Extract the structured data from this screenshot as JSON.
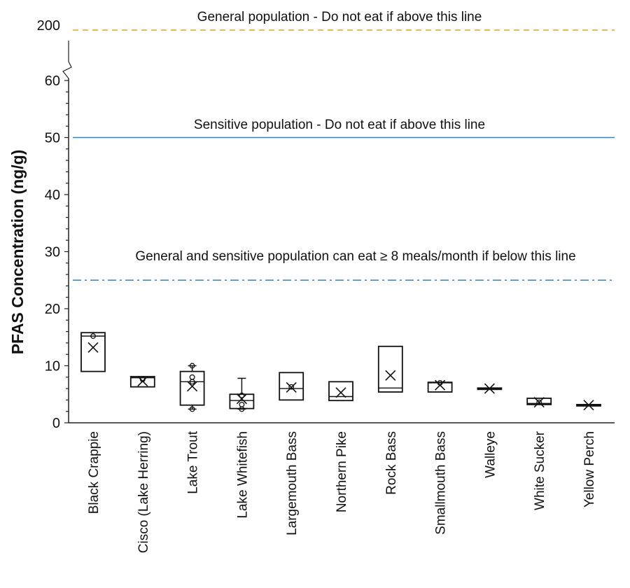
{
  "chart_data": {
    "type": "box",
    "ylabel": "PFAS Concentration (ng/g)",
    "xlabel": "",
    "ylim": [
      0,
      60
    ],
    "yticks": [
      0,
      10,
      20,
      30,
      40,
      50,
      60
    ],
    "axis_break_label": "200",
    "grid": false,
    "categories": [
      "Black Crappie",
      "Cisco (Lake Herring)",
      "Lake Trout",
      "Lake Whitefish",
      "Largemouth Bass",
      "Northern Pike",
      "Rock Bass",
      "Smallmouth Bass",
      "Walleye",
      "White Sucker",
      "Yellow Perch"
    ],
    "boxes": [
      {
        "q1": 9.0,
        "median": 15.2,
        "q3": 15.8,
        "min": 9.0,
        "max": 15.8,
        "mean": 13.2,
        "points": [
          15.2
        ]
      },
      {
        "q1": 6.3,
        "median": 7.9,
        "q3": 8.1,
        "min": 6.3,
        "max": 8.1,
        "mean": 7.3,
        "points": [
          7.6
        ]
      },
      {
        "q1": 3.1,
        "median": 7.2,
        "q3": 9.0,
        "min": 2.4,
        "max": 10.0,
        "mean": 6.4,
        "points": [
          10.0,
          8.0,
          7.2,
          2.4
        ]
      },
      {
        "q1": 2.5,
        "median": 3.9,
        "q3": 5.0,
        "min": 2.4,
        "max": 7.8,
        "mean": 4.2,
        "points": [
          4.8,
          3.2,
          2.4
        ]
      },
      {
        "q1": 4.0,
        "median": 6.0,
        "q3": 8.8,
        "min": 4.0,
        "max": 8.8,
        "mean": 6.2,
        "points": [
          6.3
        ]
      },
      {
        "q1": 3.9,
        "median": 4.6,
        "q3": 7.2,
        "min": 3.9,
        "max": 7.2,
        "mean": 5.3,
        "points": []
      },
      {
        "q1": 5.4,
        "median": 6.1,
        "q3": 13.4,
        "min": 5.4,
        "max": 13.4,
        "mean": 8.3,
        "points": []
      },
      {
        "q1": 5.4,
        "median": 7.0,
        "q3": 7.1,
        "min": 5.4,
        "max": 7.1,
        "mean": 6.6,
        "points": [
          7.0
        ]
      },
      {
        "q1": 5.9,
        "median": 6.0,
        "q3": 6.1,
        "min": 5.9,
        "max": 6.1,
        "mean": 6.0,
        "points": []
      },
      {
        "q1": 3.2,
        "median": 3.4,
        "q3": 4.3,
        "min": 3.2,
        "max": 4.3,
        "mean": 3.6,
        "points": [
          3.6
        ]
      },
      {
        "q1": 3.0,
        "median": 3.1,
        "q3": 3.2,
        "min": 3.0,
        "max": 3.2,
        "mean": 3.1,
        "points": []
      }
    ],
    "reference_lines": [
      {
        "value": 200,
        "label": "General population - Do not eat if above this line",
        "style": "dashed",
        "color": "#d9a531"
      },
      {
        "value": 50,
        "label": "Sensitive population - Do not eat if above this line",
        "style": "solid",
        "color": "#2f86c6"
      },
      {
        "value": 25,
        "label": "General and sensitive population can eat ≥ 8 meals/month if below this line",
        "style": "dashdot",
        "color": "#2f86c6"
      }
    ]
  }
}
